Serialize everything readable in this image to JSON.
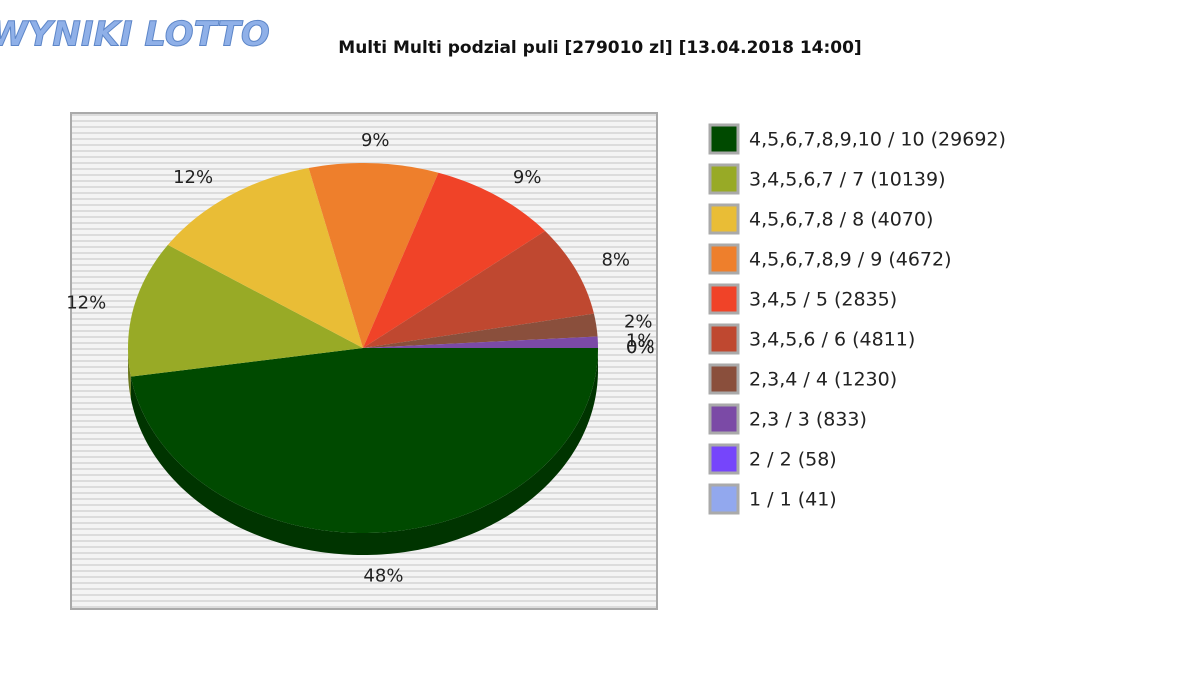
{
  "logo": {
    "text": "WYNIKI LOTTO"
  },
  "chart_data": {
    "type": "pie",
    "title": "Multi Multi podzial puli [279010 zl] [13.04.2018 14:00]",
    "categories": [
      "4,5,6,7,8,9,10 / 10 (29692)",
      "3,4,5,6,7 / 7 (10139)",
      "4,5,6,7,8 / 8 (4070)",
      "4,5,6,7,8,9 / 9 (4672)",
      "3,4,5 / 5 (2835)",
      "3,4,5,6 / 6 (4811)",
      "2,3,4 / 4 (1230)",
      "2,3 / 3 (833)",
      "2 / 2 (58)",
      "1 / 1 (41)"
    ],
    "values": [
      48,
      12,
      12,
      9,
      9,
      8,
      2,
      1,
      0,
      0
    ],
    "value_labels": [
      "48%",
      "12%",
      "12%",
      "9%",
      "9%",
      "8%",
      "2%",
      "1%",
      "0%",
      "0%"
    ],
    "colors": [
      "#004a00",
      "#98aa26",
      "#e9bd36",
      "#ee7f2c",
      "#f04328",
      "#bf4830",
      "#8a4f3c",
      "#7b4aa6",
      "#7645fb",
      "#92a8ee"
    ],
    "legend": "right"
  }
}
